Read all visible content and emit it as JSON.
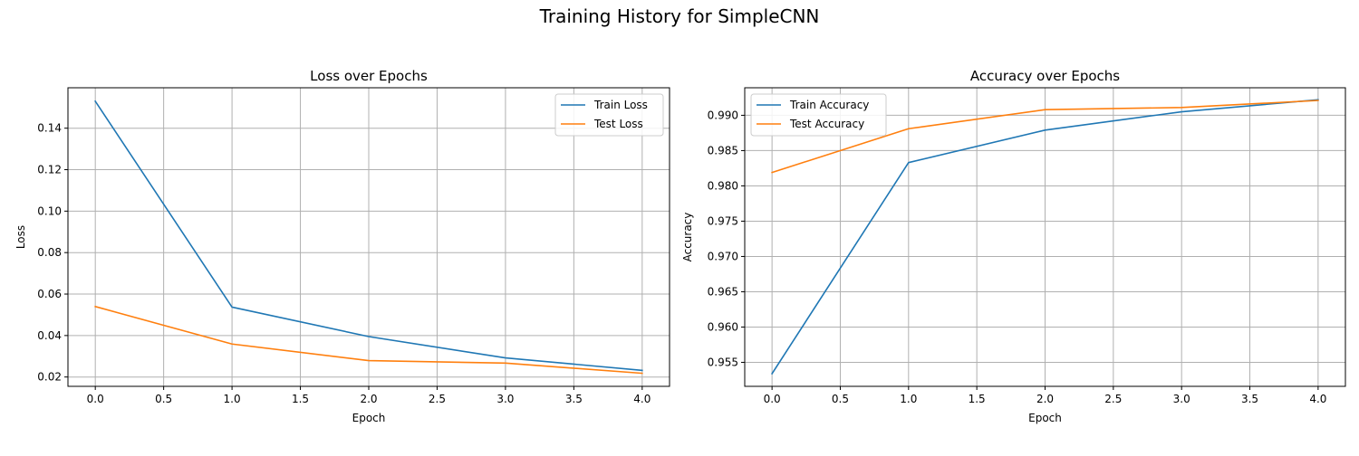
{
  "figure": {
    "suptitle": "Training History for SimpleCNN"
  },
  "chart_data": [
    {
      "type": "line",
      "title": "Loss over Epochs",
      "xlabel": "Epoch",
      "ylabel": "Loss",
      "xlim": [
        -0.2,
        4.2
      ],
      "ylim": [
        0.0155,
        0.1595
      ],
      "xticks": [
        0.0,
        0.5,
        1.0,
        1.5,
        2.0,
        2.5,
        3.0,
        3.5,
        4.0
      ],
      "xtick_labels": [
        "0.0",
        "0.5",
        "1.0",
        "1.5",
        "2.0",
        "2.5",
        "3.0",
        "3.5",
        "4.0"
      ],
      "yticks": [
        0.02,
        0.04,
        0.06,
        0.08,
        0.1,
        0.12,
        0.14
      ],
      "ytick_labels": [
        "0.02",
        "0.04",
        "0.06",
        "0.08",
        "0.10",
        "0.12",
        "0.14"
      ],
      "grid": true,
      "legend_position": "top-right",
      "x": [
        0,
        1,
        2,
        3,
        4
      ],
      "series": [
        {
          "name": "Train Loss",
          "color": "#1f77b4",
          "values": [
            0.153,
            0.0537,
            0.0395,
            0.0292,
            0.0232
          ]
        },
        {
          "name": "Test Loss",
          "color": "#ff7f0e",
          "values": [
            0.054,
            0.0359,
            0.0279,
            0.0267,
            0.0218
          ]
        }
      ]
    },
    {
      "type": "line",
      "title": "Accuracy over Epochs",
      "xlabel": "Epoch",
      "ylabel": "Accuracy",
      "xlim": [
        -0.2,
        4.2
      ],
      "ylim": [
        0.9516,
        0.9939
      ],
      "xticks": [
        0.0,
        0.5,
        1.0,
        1.5,
        2.0,
        2.5,
        3.0,
        3.5,
        4.0
      ],
      "xtick_labels": [
        "0.0",
        "0.5",
        "1.0",
        "1.5",
        "2.0",
        "2.5",
        "3.0",
        "3.5",
        "4.0"
      ],
      "yticks": [
        0.955,
        0.96,
        0.965,
        0.97,
        0.975,
        0.98,
        0.985,
        0.99
      ],
      "ytick_labels": [
        "0.955",
        "0.960",
        "0.965",
        "0.970",
        "0.975",
        "0.980",
        "0.985",
        "0.990"
      ],
      "grid": true,
      "legend_position": "top-left",
      "x": [
        0,
        1,
        2,
        3,
        4
      ],
      "series": [
        {
          "name": "Train Accuracy",
          "color": "#1f77b4",
          "values": [
            0.9534,
            0.9833,
            0.9879,
            0.9905,
            0.9922
          ]
        },
        {
          "name": "Test Accuracy",
          "color": "#ff7f0e",
          "values": [
            0.9819,
            0.9881,
            0.9908,
            0.9911,
            0.9921
          ]
        }
      ]
    }
  ]
}
